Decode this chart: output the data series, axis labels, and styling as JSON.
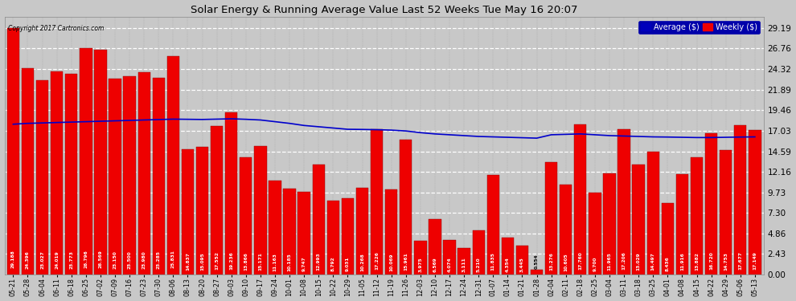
{
  "title": "Solar Energy & Running Average Value Last 52 Weeks Tue May 16 20:07",
  "copyright": "Copyright 2017 Cartronics.com",
  "background_color": "#c8c8c8",
  "plot_bg_color": "#c8c8c8",
  "bar_color": "#ee0000",
  "line_color": "#0000cc",
  "categories": [
    "05-21",
    "05-28",
    "06-04",
    "06-11",
    "06-18",
    "06-25",
    "07-02",
    "07-09",
    "07-16",
    "07-23",
    "07-30",
    "08-06",
    "08-13",
    "08-20",
    "08-27",
    "09-03",
    "09-10",
    "09-17",
    "09-24",
    "10-01",
    "10-08",
    "10-15",
    "10-22",
    "10-29",
    "11-05",
    "11-12",
    "11-19",
    "11-26",
    "12-03",
    "12-10",
    "12-17",
    "12-24",
    "12-31",
    "01-07",
    "01-14",
    "01-21",
    "01-28",
    "02-04",
    "02-11",
    "02-18",
    "02-25",
    "03-04",
    "03-11",
    "03-18",
    "03-25",
    "04-01",
    "04-08",
    "04-15",
    "04-22",
    "04-29",
    "05-06",
    "05-13"
  ],
  "weekly_values": [
    29.188,
    24.396,
    23.027,
    24.019,
    23.773,
    26.796,
    26.569,
    23.15,
    23.5,
    23.98,
    23.285,
    25.831,
    14.837,
    15.095,
    17.552,
    19.236,
    13.866,
    15.171,
    11.163,
    10.185,
    9.747,
    12.993,
    8.792,
    9.031,
    10.268,
    17.226,
    10.069,
    15.961,
    3.975,
    6.569,
    4.074,
    3.111,
    5.21,
    11.835,
    4.354,
    3.445,
    0.554,
    13.276,
    10.605,
    17.76,
    9.7,
    11.965,
    17.206,
    13.029,
    14.497,
    8.436,
    11.916,
    13.882,
    16.72,
    14.753,
    17.677,
    17.149
  ],
  "avg_values": [
    17.8,
    17.9,
    17.95,
    18.0,
    18.05,
    18.1,
    18.15,
    18.2,
    18.25,
    18.3,
    18.35,
    18.4,
    18.38,
    18.36,
    18.4,
    18.44,
    18.38,
    18.3,
    18.1,
    17.9,
    17.65,
    17.5,
    17.35,
    17.2,
    17.18,
    17.15,
    17.1,
    17.0,
    16.8,
    16.65,
    16.55,
    16.45,
    16.35,
    16.3,
    16.25,
    16.2,
    16.15,
    16.55,
    16.6,
    16.65,
    16.55,
    16.45,
    16.4,
    16.35,
    16.3,
    16.28,
    16.25,
    16.22,
    16.22,
    16.25,
    16.28,
    16.3
  ],
  "yticks": [
    0.0,
    2.43,
    4.86,
    7.3,
    9.73,
    12.16,
    14.59,
    17.03,
    19.46,
    21.89,
    24.32,
    26.76,
    29.19
  ],
  "ylim_max": 30.5
}
